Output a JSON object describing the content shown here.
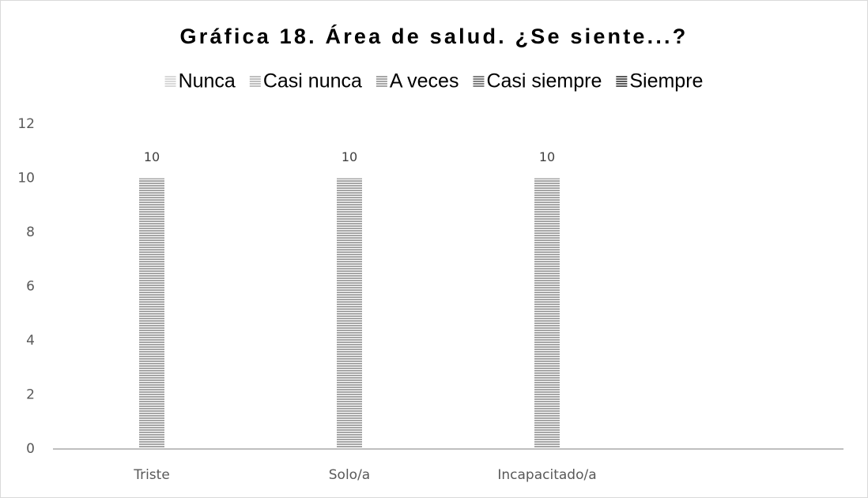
{
  "chart_data": {
    "type": "bar",
    "title": "Gráfica 18. Área de salud. ¿Se siente...?",
    "categories": [
      "Triste",
      "Solo/a",
      "Incapacitado/a",
      null
    ],
    "series": [
      {
        "name": "Nunca",
        "color": "#d9d9d9",
        "values": [
          null,
          null,
          null,
          null
        ]
      },
      {
        "name": "Casi nunca",
        "color": "#bfbfbf",
        "values": [
          null,
          null,
          null,
          null
        ]
      },
      {
        "name": "A veces",
        "color": "#a6a6a6",
        "values": [
          10,
          10,
          10,
          null
        ]
      },
      {
        "name": "Casi siempre",
        "color": "#808080",
        "values": [
          null,
          null,
          null,
          null
        ]
      },
      {
        "name": "Siempre",
        "color": "#595959",
        "values": [
          null,
          null,
          null,
          null
        ]
      }
    ],
    "ylim": [
      0,
      12
    ],
    "yticks": [
      0,
      2,
      4,
      6,
      8,
      10,
      12
    ],
    "grid": false,
    "legend": "top"
  }
}
